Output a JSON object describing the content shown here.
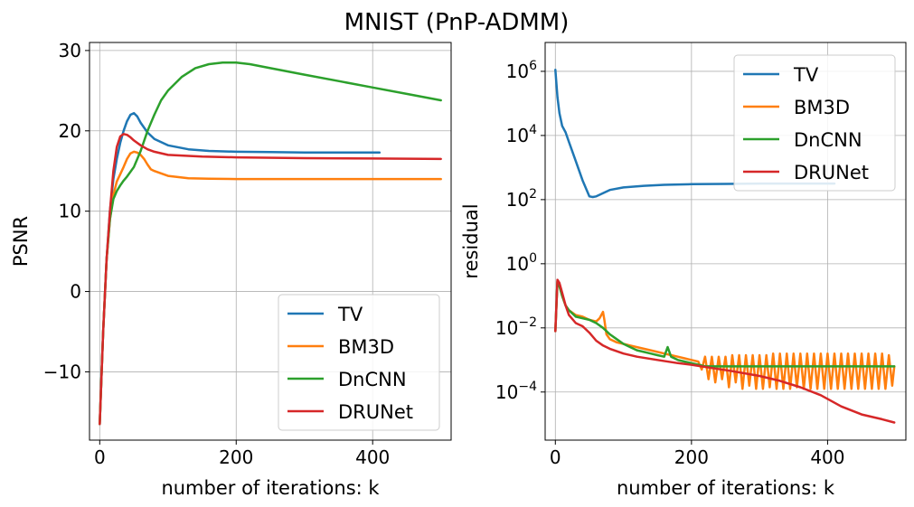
{
  "figure": {
    "suptitle": "MNIST (PnP-ADMM)"
  },
  "chart_data": [
    {
      "type": "line",
      "title": "",
      "xlabel": "number of iterations: k",
      "ylabel": "PSNR",
      "xlim": [
        -15,
        515
      ],
      "ylim": [
        -18.5,
        31
      ],
      "xticks": [
        0,
        200,
        400
      ],
      "yticks": [
        -10,
        0,
        10,
        20,
        30
      ],
      "ytick_labels": [
        "−10",
        "0",
        "10",
        "20",
        "30"
      ],
      "yscale": "linear",
      "grid": true,
      "legend_position": "lower right",
      "series": [
        {
          "name": "TV",
          "color": "#1f77b4",
          "x": [
            0,
            5,
            10,
            15,
            20,
            25,
            30,
            35,
            40,
            45,
            50,
            55,
            60,
            70,
            80,
            100,
            130,
            160,
            200,
            250,
            300,
            350,
            410
          ],
          "y": [
            -16.5,
            -5,
            4,
            10,
            14,
            16.5,
            18.5,
            20,
            21.2,
            22,
            22.2,
            21.8,
            21,
            19.8,
            19,
            18.2,
            17.7,
            17.5,
            17.4,
            17.35,
            17.3,
            17.3,
            17.3
          ]
        },
        {
          "name": "BM3D",
          "color": "#ff7f0e",
          "x": [
            0,
            5,
            10,
            15,
            20,
            25,
            30,
            35,
            40,
            45,
            50,
            55,
            60,
            65,
            70,
            75,
            80,
            100,
            130,
            160,
            200,
            300,
            400,
            500
          ],
          "y": [
            -16.5,
            -5,
            4,
            9,
            12,
            13.7,
            14.6,
            15.5,
            16.5,
            17.2,
            17.4,
            17.3,
            17,
            16.5,
            15.8,
            15.2,
            15,
            14.4,
            14.1,
            14.05,
            14,
            14,
            14,
            14
          ]
        },
        {
          "name": "DnCNN",
          "color": "#2ca02c",
          "x": [
            0,
            5,
            10,
            15,
            20,
            25,
            30,
            35,
            40,
            50,
            60,
            70,
            80,
            90,
            100,
            120,
            140,
            160,
            180,
            200,
            220,
            250,
            300,
            350,
            400,
            450,
            500
          ],
          "y": [
            -16.5,
            -5,
            4,
            9,
            11.5,
            12.5,
            13.2,
            13.8,
            14.3,
            15.5,
            17.5,
            20,
            22,
            23.8,
            25,
            26.7,
            27.8,
            28.3,
            28.5,
            28.5,
            28.3,
            27.8,
            27,
            26.2,
            25.4,
            24.6,
            23.8
          ]
        },
        {
          "name": "DRUNet",
          "color": "#d62728",
          "x": [
            0,
            5,
            10,
            15,
            20,
            25,
            30,
            35,
            40,
            45,
            50,
            60,
            70,
            80,
            100,
            150,
            200,
            300,
            400,
            500
          ],
          "y": [
            -16.5,
            -5,
            4,
            10,
            15,
            18,
            19.3,
            19.6,
            19.5,
            19.2,
            18.8,
            18.2,
            17.7,
            17.4,
            17,
            16.8,
            16.7,
            16.6,
            16.55,
            16.5
          ]
        }
      ]
    },
    {
      "type": "line",
      "title": "",
      "xlabel": "number of iterations: k",
      "ylabel": "residual",
      "xlim": [
        -15,
        515
      ],
      "ylim_log10": [
        -5.5,
        6.9
      ],
      "xticks": [
        0,
        200,
        400
      ],
      "yticks_log10": [
        -4,
        -2,
        0,
        2,
        4,
        6
      ],
      "ytick_labels": [
        "10",
        "10",
        "10",
        "10",
        "10",
        "10"
      ],
      "ytick_exponents": [
        "−4",
        "−2",
        "0",
        "2",
        "4",
        "6"
      ],
      "yscale": "log",
      "grid": true,
      "legend_position": "upper right",
      "series": [
        {
          "name": "TV",
          "color": "#1f77b4",
          "x": [
            0,
            3,
            6,
            10,
            15,
            20,
            30,
            40,
            50,
            55,
            60,
            70,
            80,
            100,
            130,
            160,
            200,
            250,
            300,
            350,
            410
          ],
          "y_log10": [
            6.05,
            5.2,
            4.7,
            4.3,
            4.1,
            3.8,
            3.2,
            2.6,
            2.1,
            2.08,
            2.1,
            2.2,
            2.3,
            2.38,
            2.43,
            2.46,
            2.48,
            2.49,
            2.5,
            2.5,
            2.5
          ]
        },
        {
          "name": "BM3D",
          "color": "#ff7f0e",
          "x": [
            0,
            3,
            6,
            10,
            15,
            20,
            30,
            40,
            50,
            60,
            65,
            70,
            72,
            75,
            80,
            90,
            100,
            110,
            120,
            130,
            140,
            150,
            160,
            170,
            180,
            190,
            200,
            210,
            215,
            220,
            225,
            230,
            235,
            240,
            245,
            250,
            255,
            260,
            265,
            270,
            275,
            280,
            285,
            290,
            295,
            300,
            305,
            310,
            315,
            320,
            325,
            330,
            335,
            340,
            345,
            350,
            355,
            360,
            365,
            370,
            375,
            380,
            385,
            390,
            395,
            400,
            405,
            410,
            415,
            420,
            425,
            430,
            435,
            440,
            445,
            450,
            455,
            460,
            465,
            470,
            475,
            480,
            485,
            490,
            495,
            498
          ],
          "y_log10": [
            -2.1,
            -0.55,
            -0.7,
            -1.0,
            -1.3,
            -1.45,
            -1.6,
            -1.65,
            -1.75,
            -1.8,
            -1.7,
            -1.5,
            -1.75,
            -2.2,
            -2.35,
            -2.45,
            -2.5,
            -2.55,
            -2.6,
            -2.65,
            -2.7,
            -2.75,
            -2.8,
            -2.85,
            -2.9,
            -2.95,
            -3.0,
            -3.05,
            -3.3,
            -2.9,
            -3.6,
            -2.9,
            -3.7,
            -2.9,
            -3.6,
            -2.9,
            -3.85,
            -2.85,
            -3.7,
            -2.85,
            -3.9,
            -2.85,
            -3.8,
            -2.85,
            -3.9,
            -2.85,
            -3.9,
            -2.85,
            -3.85,
            -2.8,
            -3.9,
            -2.8,
            -3.9,
            -2.8,
            -3.9,
            -2.8,
            -3.85,
            -2.8,
            -3.9,
            -2.8,
            -3.9,
            -2.8,
            -3.9,
            -2.8,
            -3.9,
            -2.8,
            -3.9,
            -2.8,
            -3.9,
            -2.8,
            -3.9,
            -2.8,
            -3.9,
            -2.8,
            -3.9,
            -2.8,
            -3.9,
            -2.8,
            -3.9,
            -2.8,
            -3.9,
            -2.8,
            -3.9,
            -2.85,
            -3.8,
            -3.2
          ]
        },
        {
          "name": "DnCNN",
          "color": "#2ca02c",
          "x": [
            0,
            3,
            6,
            10,
            15,
            20,
            30,
            40,
            50,
            60,
            70,
            80,
            90,
            100,
            110,
            120,
            130,
            140,
            150,
            160,
            165,
            170,
            180,
            190,
            200,
            210,
            220,
            230,
            240,
            250,
            260,
            270,
            280,
            290,
            300,
            310,
            320,
            330,
            340,
            350,
            360,
            370,
            380,
            390,
            400,
            410,
            420,
            430,
            440,
            450,
            460,
            470,
            480,
            490,
            498
          ],
          "y_log10": [
            -2.1,
            -0.55,
            -0.7,
            -1.0,
            -1.3,
            -1.45,
            -1.65,
            -1.7,
            -1.75,
            -1.85,
            -2.0,
            -2.2,
            -2.35,
            -2.5,
            -2.6,
            -2.7,
            -2.75,
            -2.8,
            -2.85,
            -2.9,
            -2.6,
            -2.9,
            -3.0,
            -3.05,
            -3.1,
            -3.15,
            -3.2,
            -3.2,
            -3.2,
            -3.2,
            -3.2,
            -3.2,
            -3.2,
            -3.2,
            -3.2,
            -3.2,
            -3.2,
            -3.2,
            -3.2,
            -3.2,
            -3.2,
            -3.2,
            -3.2,
            -3.2,
            -3.2,
            -3.2,
            -3.2,
            -3.2,
            -3.2,
            -3.2,
            -3.2,
            -3.2,
            -3.2,
            -3.2,
            -3.2
          ]
        },
        {
          "name": "DRUNet",
          "color": "#d62728",
          "x": [
            0,
            3,
            6,
            10,
            15,
            20,
            30,
            40,
            50,
            60,
            70,
            80,
            100,
            120,
            150,
            180,
            200,
            230,
            260,
            300,
            330,
            360,
            390,
            420,
            450,
            480,
            498
          ],
          "y_log10": [
            -2.1,
            -0.5,
            -0.6,
            -0.9,
            -1.3,
            -1.6,
            -1.85,
            -1.95,
            -2.15,
            -2.4,
            -2.55,
            -2.65,
            -2.8,
            -2.9,
            -3.0,
            -3.1,
            -3.15,
            -3.25,
            -3.35,
            -3.5,
            -3.65,
            -3.85,
            -4.1,
            -4.45,
            -4.7,
            -4.85,
            -4.95
          ]
        }
      ]
    }
  ]
}
